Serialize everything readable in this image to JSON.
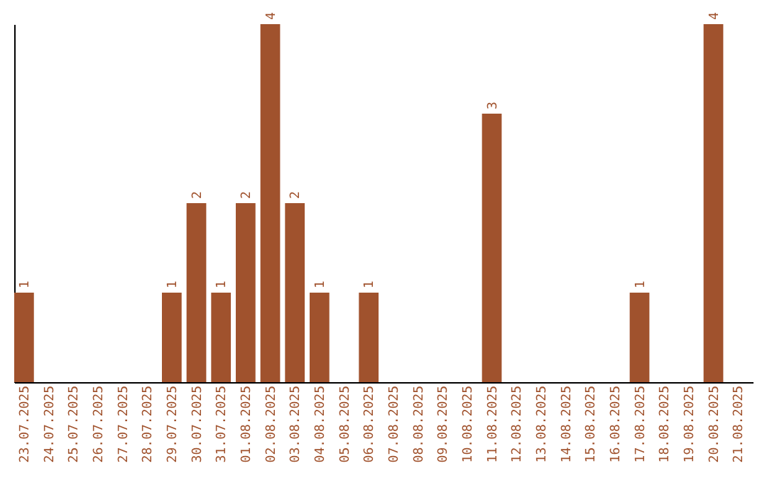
{
  "chart_data": {
    "type": "bar",
    "categories": [
      "23.07.2025",
      "24.07.2025",
      "25.07.2025",
      "26.07.2025",
      "27.07.2025",
      "28.07.2025",
      "29.07.2025",
      "30.07.2025",
      "31.07.2025",
      "01.08.2025",
      "02.08.2025",
      "03.08.2025",
      "04.08.2025",
      "05.08.2025",
      "06.08.2025",
      "07.08.2025",
      "08.08.2025",
      "09.08.2025",
      "10.08.2025",
      "11.08.2025",
      "12.08.2025",
      "13.08.2025",
      "14.08.2025",
      "15.08.2025",
      "16.08.2025",
      "17.08.2025",
      "18.08.2025",
      "19.08.2025",
      "20.08.2025",
      "21.08.2025"
    ],
    "values": [
      1,
      0,
      0,
      0,
      0,
      0,
      1,
      2,
      1,
      2,
      4,
      2,
      1,
      0,
      1,
      0,
      0,
      0,
      0,
      3,
      0,
      0,
      0,
      0,
      0,
      1,
      0,
      0,
      4,
      0
    ],
    "value_labels": [
      "1",
      null,
      null,
      null,
      null,
      null,
      "1",
      "2",
      "1",
      "2",
      "4",
      "2",
      "1",
      null,
      "1",
      null,
      null,
      null,
      null,
      "3",
      null,
      null,
      null,
      null,
      null,
      "1",
      null,
      null,
      "4",
      null
    ],
    "color": "#a0522d",
    "grid": false,
    "tick_labels": "x"
  }
}
